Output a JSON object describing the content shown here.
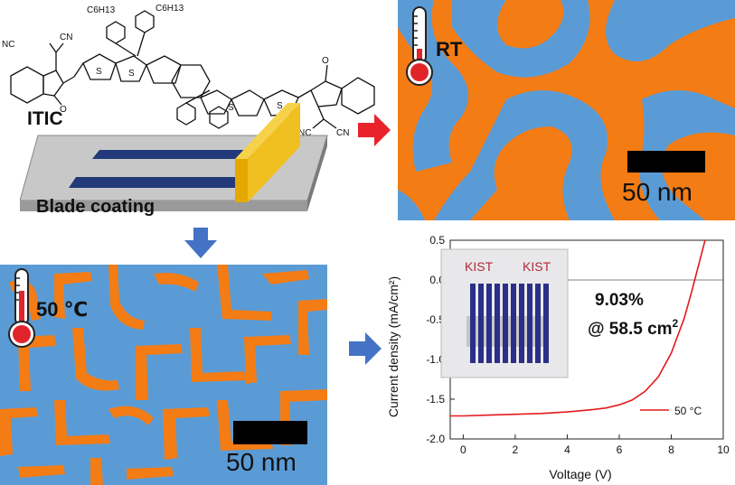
{
  "molecule": {
    "name": "ITIC",
    "groups": {
      "nc1": "NC",
      "cn1": "CN",
      "nc2": "NC",
      "cn2": "CN",
      "o": "O",
      "s": "S"
    },
    "hexyl": "C6H13"
  },
  "blade": {
    "label": "Blade coating",
    "colors": {
      "substrate": "#c8c8c8",
      "strip": "#223a7a",
      "blade": "#f0c020"
    }
  },
  "rt_panel": {
    "temp_label": "RT",
    "scale_label": "50 nm",
    "colors": {
      "a": "#f47c14",
      "b": "#5b9bd5"
    }
  },
  "ht_panel": {
    "temp_label": "50 ℃",
    "scale_label": "50 nm",
    "colors": {
      "a": "#f47c14",
      "b": "#5b9bd5"
    }
  },
  "arrows": {
    "red": "#e8242a",
    "blue": "#4472c4"
  },
  "chart_data": {
    "type": "line",
    "xlabel": "Voltage (V)",
    "ylabel": "Current density (mA/cm²)",
    "xlim": [
      -0.5,
      10
    ],
    "ylim": [
      -2.0,
      0.5
    ],
    "x_ticks": [
      "0",
      "2",
      "4",
      "6",
      "8",
      "10"
    ],
    "y_ticks": [
      "0.5",
      "0.0",
      "-0.5",
      "-1.0",
      "-1.5",
      "-2.0"
    ],
    "series": [
      {
        "name": "50 °C",
        "color": "#e31a1c",
        "x": [
          -0.5,
          0,
          1,
          2,
          3,
          4,
          5,
          5.5,
          6,
          6.5,
          7,
          7.5,
          8,
          8.5,
          8.8,
          9.0,
          9.3
        ],
        "y": [
          -1.71,
          -1.71,
          -1.7,
          -1.69,
          -1.68,
          -1.66,
          -1.63,
          -1.61,
          -1.57,
          -1.51,
          -1.4,
          -1.22,
          -0.92,
          -0.48,
          -0.13,
          0.12,
          0.5
        ]
      }
    ],
    "annotation": {
      "line1": "9.03%",
      "line2_prefix": "@ 58.5 cm",
      "line2_sup": "2"
    },
    "photo_text": {
      "logo_left": "KIST",
      "logo_right": "KIST"
    },
    "legend_position": "bottom-right"
  }
}
